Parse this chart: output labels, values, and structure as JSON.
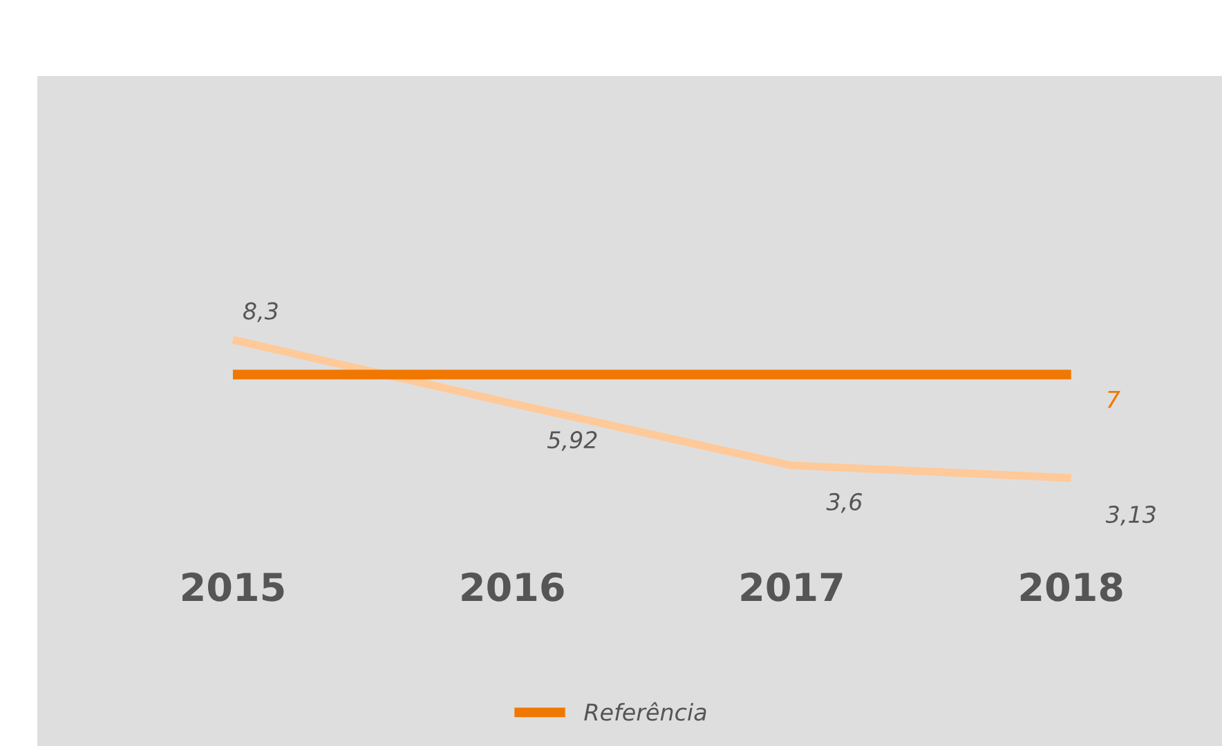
{
  "chart_data": {
    "type": "line",
    "categories": [
      "2015",
      "2016",
      "2017",
      "2018"
    ],
    "series": [
      {
        "color": "#ffc999",
        "values": [
          8.3,
          5.92,
          3.6,
          3.13
        ],
        "value_labels": [
          "8,3",
          "5,92",
          "3,6",
          "3,13"
        ]
      },
      {
        "name": "Referência",
        "color": "#f07800",
        "values": [
          7,
          7,
          7,
          7
        ],
        "value_labels": [
          null,
          null,
          null,
          "7"
        ]
      }
    ],
    "legend": "bottom",
    "marker": "none",
    "line_style": "solid"
  }
}
